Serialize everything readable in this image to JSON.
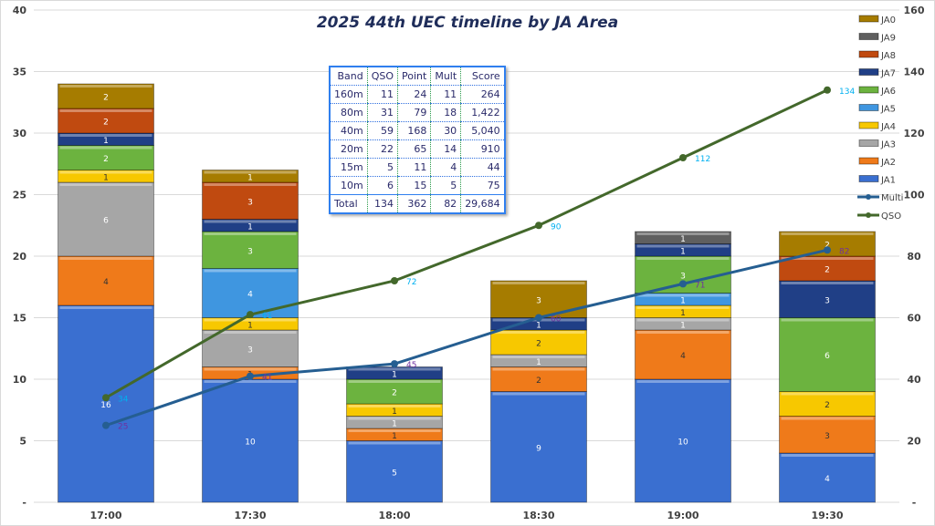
{
  "chart_data": {
    "type": "bar",
    "title": "2025 44th UEC timeline by JA Area",
    "categories": [
      "17:00",
      "17:30",
      "18:00",
      "18:30",
      "19:00",
      "19:30"
    ],
    "ylim": [
      0,
      40
    ],
    "y2lim": [
      0,
      160
    ],
    "yticks": [
      "-",
      "5",
      "10",
      "15",
      "20",
      "25",
      "30",
      "35",
      "40"
    ],
    "y2ticks": [
      "-",
      "20",
      "40",
      "60",
      "80",
      "100",
      "120",
      "140",
      "160"
    ],
    "legend_position": "right",
    "series": [
      {
        "name": "JA1",
        "color": "#3a6fd0",
        "values": [
          16,
          10,
          5,
          9,
          10,
          4
        ]
      },
      {
        "name": "JA2",
        "color": "#ef7a1a",
        "values": [
          4,
          1,
          1,
          2,
          4,
          3
        ]
      },
      {
        "name": "JA3",
        "color": "#a6a6a6",
        "values": [
          6,
          3,
          1,
          1,
          1,
          0
        ]
      },
      {
        "name": "JA4",
        "color": "#f7c800",
        "values": [
          1,
          1,
          1,
          2,
          1,
          2
        ]
      },
      {
        "name": "JA5",
        "color": "#3f96e0",
        "values": [
          0,
          4,
          0,
          0,
          1,
          0
        ]
      },
      {
        "name": "JA6",
        "color": "#6cb33f",
        "values": [
          2,
          3,
          2,
          0,
          3,
          6
        ]
      },
      {
        "name": "JA7",
        "color": "#203f86",
        "values": [
          1,
          1,
          1,
          1,
          1,
          3
        ]
      },
      {
        "name": "JA8",
        "color": "#c04a10",
        "values": [
          2,
          3,
          0,
          0,
          0,
          2
        ]
      },
      {
        "name": "JA9",
        "color": "#5f5f5f",
        "values": [
          0,
          0,
          0,
          0,
          1,
          0
        ]
      },
      {
        "name": "JA0",
        "color": "#a67c00",
        "values": [
          2,
          1,
          0,
          3,
          0,
          2
        ]
      }
    ],
    "line_series": [
      {
        "name": "Multi",
        "color": "#255e91",
        "label_color": "#7030a0",
        "axis": "right",
        "values": [
          25,
          41,
          45,
          60,
          71,
          82
        ]
      },
      {
        "name": "QSO",
        "color": "#43682b",
        "label_color": "#00b0f0",
        "axis": "right",
        "values": [
          34,
          61,
          72,
          90,
          112,
          134
        ]
      }
    ]
  },
  "table": {
    "headers": [
      "Band",
      "QSO",
      "Point",
      "Mult",
      "Score"
    ],
    "rows": [
      [
        "160m",
        "11",
        "24",
        "11",
        "264"
      ],
      [
        "80m",
        "31",
        "79",
        "18",
        "1,422"
      ],
      [
        "40m",
        "59",
        "168",
        "30",
        "5,040"
      ],
      [
        "20m",
        "22",
        "65",
        "14",
        "910"
      ],
      [
        "15m",
        "5",
        "11",
        "4",
        "44"
      ],
      [
        "10m",
        "6",
        "15",
        "5",
        "75"
      ]
    ],
    "total": [
      "Total",
      "134",
      "362",
      "82",
      "29,684"
    ]
  }
}
